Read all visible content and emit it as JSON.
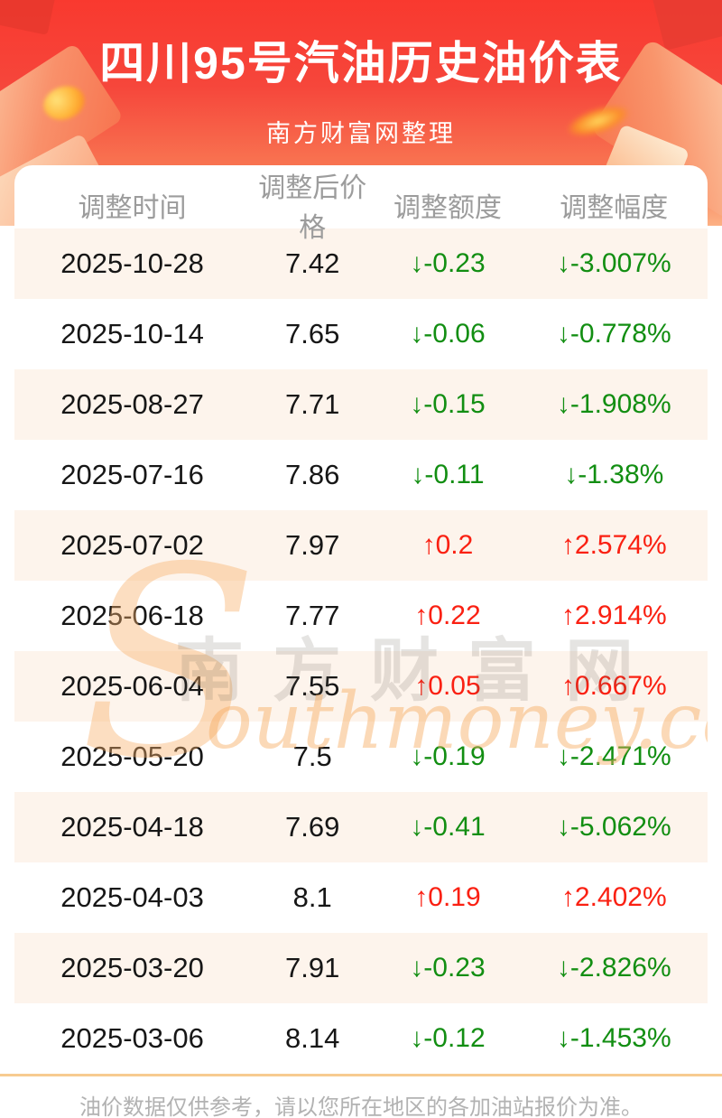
{
  "header": {
    "title": "四川95号汽油历史油价表",
    "subtitle": "南方财富网整理"
  },
  "chart_data": {
    "type": "table",
    "title": "四川95号汽油历史油价表",
    "subtitle": "南方财富网整理",
    "columns": [
      "调整时间",
      "调整后价格",
      "调整额度",
      "调整幅度"
    ],
    "rows": [
      {
        "date": "2025-10-28",
        "price": "7.42",
        "change": "-0.23",
        "percent": "-3.007%",
        "direction": "down"
      },
      {
        "date": "2025-10-14",
        "price": "7.65",
        "change": "-0.06",
        "percent": "-0.778%",
        "direction": "down"
      },
      {
        "date": "2025-08-27",
        "price": "7.71",
        "change": "-0.15",
        "percent": "-1.908%",
        "direction": "down"
      },
      {
        "date": "2025-07-16",
        "price": "7.86",
        "change": "-0.11",
        "percent": "-1.38%",
        "direction": "down"
      },
      {
        "date": "2025-07-02",
        "price": "7.97",
        "change": "0.2",
        "percent": "2.574%",
        "direction": "up"
      },
      {
        "date": "2025-06-18",
        "price": "7.77",
        "change": "0.22",
        "percent": "2.914%",
        "direction": "up"
      },
      {
        "date": "2025-06-04",
        "price": "7.55",
        "change": "0.05",
        "percent": "0.667%",
        "direction": "up"
      },
      {
        "date": "2025-05-20",
        "price": "7.5",
        "change": "-0.19",
        "percent": "-2.471%",
        "direction": "down"
      },
      {
        "date": "2025-04-18",
        "price": "7.69",
        "change": "-0.41",
        "percent": "-5.062%",
        "direction": "down"
      },
      {
        "date": "2025-04-03",
        "price": "8.1",
        "change": "0.19",
        "percent": "2.402%",
        "direction": "up"
      },
      {
        "date": "2025-03-20",
        "price": "7.91",
        "change": "-0.23",
        "percent": "-2.826%",
        "direction": "down"
      },
      {
        "date": "2025-03-06",
        "price": "8.14",
        "change": "-0.12",
        "percent": "-1.453%",
        "direction": "down"
      }
    ]
  },
  "arrows": {
    "up": "↑",
    "down": "↓"
  },
  "watermark": {
    "s": "S",
    "cn": "南方财富网",
    "en": "outhmoney.com"
  },
  "footer": {
    "note": "油价数据仅供参考，请以您所在地区的各加油站报价为准。"
  },
  "colors": {
    "up": "#fa2012",
    "down": "#128e12",
    "banner_top": "#f9392f",
    "banner_bottom": "#fcb084",
    "header_text": "#9c9c9c",
    "row_alt_bg": "#fdf4ec",
    "divider": "#f7cb90",
    "footer_text": "#b2b2b2"
  }
}
